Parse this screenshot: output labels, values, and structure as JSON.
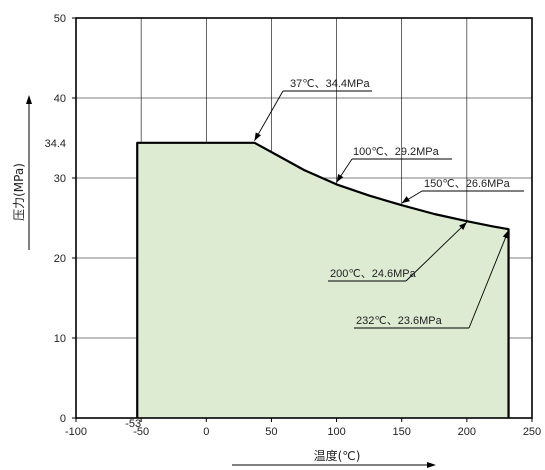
{
  "chart_data": {
    "type": "area",
    "xlabel": "温度(℃)",
    "ylabel": "压力(MPa)",
    "xlim": [
      -100,
      250
    ],
    "ylim": [
      0,
      50
    ],
    "x_ticks": [
      "-100",
      "-50",
      "0",
      "50",
      "100",
      "150",
      "200",
      "250"
    ],
    "y_ticks": [
      "0",
      "10",
      "20",
      "30",
      "40",
      "50"
    ],
    "extra_x_tick": {
      "value": -53,
      "label": "-53"
    },
    "extra_y_tick": {
      "value": 34.4,
      "label": "34.4"
    },
    "grid": true,
    "fill_color": "#dcebd2",
    "series": [
      {
        "x": [
          -53,
          37,
          55,
          75,
          100,
          125,
          150,
          175,
          200,
          220,
          232
        ],
        "y": [
          34.4,
          34.4,
          32.8,
          31.0,
          29.2,
          27.8,
          26.6,
          25.5,
          24.6,
          23.95,
          23.6
        ]
      }
    ],
    "annotations": [
      {
        "label": "37℃、34.4MPa",
        "x": 37,
        "y": 34.4
      },
      {
        "label": "100℃、29.2MPa",
        "x": 100,
        "y": 29.2
      },
      {
        "label": "150℃、26.6MPa",
        "x": 150,
        "y": 26.6
      },
      {
        "label": "200℃、24.6MPa",
        "x": 200,
        "y": 24.6
      },
      {
        "label": "232℃、23.6MPa",
        "x": 232,
        "y": 23.6
      }
    ]
  }
}
